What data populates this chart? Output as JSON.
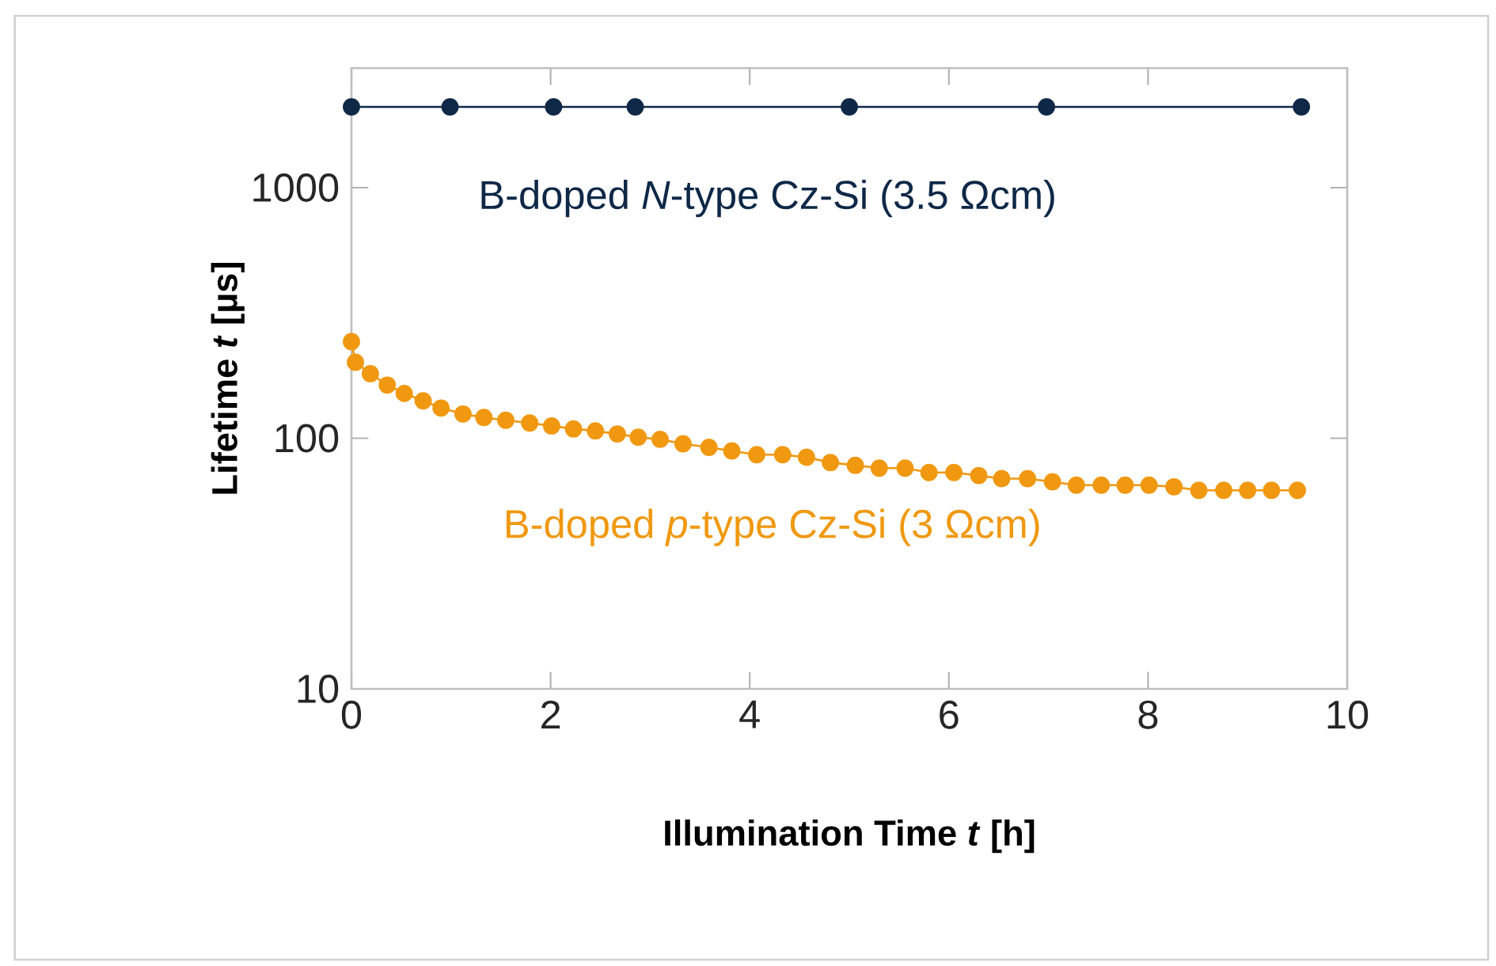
{
  "chart_data": {
    "type": "line",
    "xlabel": "Illumination Time *t* [h]",
    "ylabel": "Lifetime *t* [µs]",
    "log": "y",
    "marker": "circle",
    "line_style": "solid",
    "xlim": [
      0,
      10
    ],
    "ylim": [
      10,
      3000
    ],
    "xticks": [
      0,
      2,
      4,
      6,
      8,
      10
    ],
    "yticks": [
      10,
      100,
      1000
    ],
    "series": [
      {
        "name": "B-doped *N*-type Cz-Si (3.5 Ωcm)",
        "color": "#0f2847",
        "x": [
          0,
          0.99,
          2.03,
          2.85,
          5.0,
          6.98,
          9.54
        ],
        "values": [
          2100,
          2100,
          2100,
          2100,
          2100,
          2100,
          2100
        ]
      },
      {
        "name": "B-doped *p*-type Cz-Si (3 Ωcm)",
        "color": "#f0980f",
        "x": [
          0,
          0.04,
          0.19,
          0.36,
          0.53,
          0.72,
          0.9,
          1.12,
          1.33,
          1.55,
          1.79,
          2.01,
          2.23,
          2.45,
          2.67,
          2.88,
          3.1,
          3.33,
          3.59,
          3.82,
          4.07,
          4.33,
          4.57,
          4.81,
          5.06,
          5.3,
          5.56,
          5.8,
          6.05,
          6.3,
          6.53,
          6.79,
          7.04,
          7.28,
          7.53,
          7.77,
          8.01,
          8.26,
          8.51,
          8.76,
          9.0,
          9.24,
          9.5
        ],
        "values": [
          243,
          201,
          181,
          163,
          151,
          141,
          132,
          125,
          121,
          118,
          115,
          112,
          109,
          107,
          104,
          101,
          99,
          95,
          92,
          89,
          86,
          86,
          84,
          80,
          78,
          76,
          76,
          73,
          73,
          71,
          69,
          69,
          67,
          65,
          65,
          65,
          65,
          64,
          62,
          62,
          62,
          62,
          62
        ]
      }
    ]
  }
}
